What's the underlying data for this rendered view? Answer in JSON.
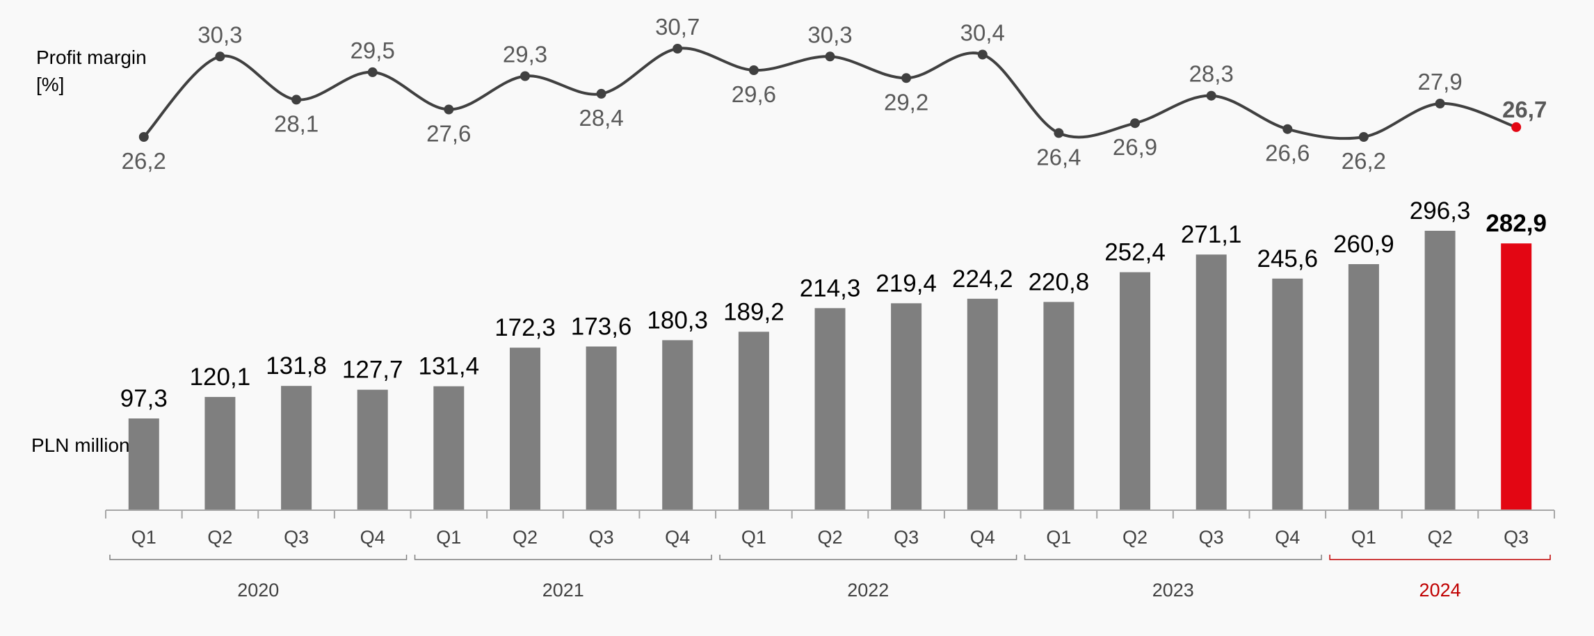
{
  "chart_data": [
    {
      "type": "line",
      "ylabel_lines": [
        "Profit margin",
        "[%]"
      ],
      "categories": [
        "Q1",
        "Q2",
        "Q3",
        "Q4",
        "Q1",
        "Q2",
        "Q3",
        "Q4",
        "Q1",
        "Q2",
        "Q3",
        "Q4",
        "Q1",
        "Q2",
        "Q3",
        "Q4",
        "Q1",
        "Q2",
        "Q3"
      ],
      "values": [
        26.2,
        30.3,
        28.1,
        29.5,
        27.6,
        29.3,
        28.4,
        30.7,
        29.6,
        30.3,
        29.2,
        30.4,
        26.4,
        26.9,
        28.3,
        26.6,
        26.2,
        27.9,
        26.7
      ],
      "value_labels": [
        "26,2",
        "30,3",
        "28,1",
        "29,5",
        "27,6",
        "29,3",
        "28,4",
        "30,7",
        "29,6",
        "30,3",
        "29,2",
        "30,4",
        "26,4",
        "26,9",
        "28,3",
        "26,6",
        "26,2",
        "27,9",
        "26,7"
      ],
      "line_color": "#404040",
      "highlight_color": "#e30613",
      "smooth": true,
      "highlight_last": true
    },
    {
      "type": "bar",
      "ylabel": "PLN million",
      "categories": [
        "Q1",
        "Q2",
        "Q3",
        "Q4",
        "Q1",
        "Q2",
        "Q3",
        "Q4",
        "Q1",
        "Q2",
        "Q3",
        "Q4",
        "Q1",
        "Q2",
        "Q3",
        "Q4",
        "Q1",
        "Q2",
        "Q3"
      ],
      "values": [
        97.3,
        120.1,
        131.8,
        127.7,
        131.4,
        172.3,
        173.6,
        180.3,
        189.2,
        214.3,
        219.4,
        224.2,
        220.8,
        252.4,
        271.1,
        245.6,
        260.9,
        296.3,
        282.9
      ],
      "value_labels": [
        "97,3",
        "120,1",
        "131,8",
        "127,7",
        "131,4",
        "172,3",
        "173,6",
        "180,3",
        "189,2",
        "214,3",
        "219,4",
        "224,2",
        "220,8",
        "252,4",
        "271,1",
        "245,6",
        "260,9",
        "296,3",
        "282,9"
      ],
      "ylim": [
        0,
        296.3
      ],
      "bar_color": "#7f7f7f",
      "highlight_color": "#e30613",
      "highlight_last": true,
      "groups": [
        {
          "label": "2020",
          "count": 4,
          "highlight": false
        },
        {
          "label": "2021",
          "count": 4,
          "highlight": false
        },
        {
          "label": "2022",
          "count": 4,
          "highlight": false
        },
        {
          "label": "2023",
          "count": 4,
          "highlight": false
        },
        {
          "label": "2024",
          "count": 3,
          "highlight": true
        }
      ],
      "axis_color": "#a6a6a6",
      "group_text_color": "#404040",
      "group_highlight_color": "#c00000"
    }
  ]
}
